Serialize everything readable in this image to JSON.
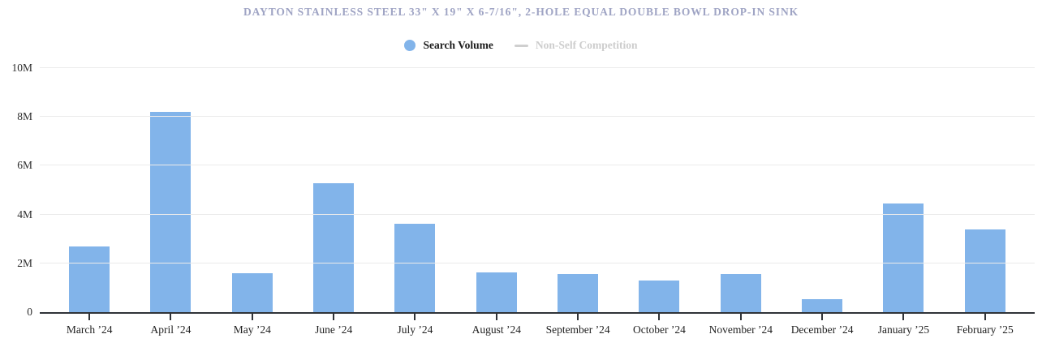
{
  "header": {
    "title": "DAYTON STAINLESS STEEL 33\" X 19\" X 6-7/16\", 2-HOLE EQUAL DOUBLE BOWL DROP-IN SINK"
  },
  "legend": {
    "items": [
      {
        "label": "Search Volume",
        "marker": "dot",
        "color": "#82b4ea",
        "muted": false
      },
      {
        "label": "Non-Self Competition",
        "marker": "line",
        "color": "#cfcfcf",
        "muted": true
      }
    ]
  },
  "colors": {
    "bar": "#82b4ea",
    "title": "#9fa4c4",
    "axis": "#303338",
    "gridline": "#ebebeb",
    "muted_legend": "#cdcdcd"
  },
  "chart_data": {
    "type": "bar",
    "title": "DAYTON STAINLESS STEEL 33\" X 19\" X 6-7/16\", 2-HOLE EQUAL DOUBLE BOWL DROP-IN SINK",
    "categories": [
      "March ’24",
      "April ’24",
      "May ’24",
      "June ’24",
      "July ’24",
      "August ’24",
      "September ’24",
      "October ’24",
      "November ’24",
      "December ’24",
      "January ’25",
      "February ’25"
    ],
    "series": [
      {
        "name": "Search Volume",
        "color": "#82b4ea",
        "values": [
          2700000,
          8200000,
          1580000,
          5280000,
          3620000,
          1630000,
          1550000,
          1280000,
          1560000,
          520000,
          4450000,
          3380000
        ]
      },
      {
        "name": "Non-Self Competition",
        "color": "#cfcfcf",
        "values": [],
        "note": "legend entry only; no data plotted in the visible chart"
      }
    ],
    "xlabel": "",
    "ylabel": "",
    "ylim": [
      0,
      10000000
    ],
    "yticks": [
      {
        "value": 0,
        "label": "0"
      },
      {
        "value": 2000000,
        "label": "2M"
      },
      {
        "value": 4000000,
        "label": "4M"
      },
      {
        "value": 6000000,
        "label": "6M"
      },
      {
        "value": 8000000,
        "label": "8M"
      },
      {
        "value": 10000000,
        "label": "10M"
      }
    ],
    "grid": "horizontal",
    "legend_position": "top-center"
  }
}
